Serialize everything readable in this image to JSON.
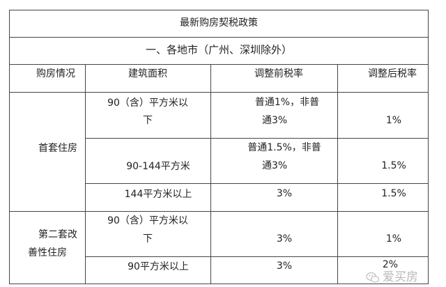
{
  "title": "最新购房契税政策",
  "section": "一、各地市（广州、深圳除外）",
  "headers": [
    "购房情况",
    "建筑面积",
    "调整前税率",
    "调整后税率"
  ],
  "groups": [
    {
      "label_lines": [
        "首套住房"
      ],
      "rows": [
        {
          "area_lines": [
            "90（含）平方米以",
            "下"
          ],
          "before_lines": [
            "普通1%，非普",
            "通3%"
          ],
          "after": "1%"
        },
        {
          "area_lines": [
            "90-144平方米"
          ],
          "before_lines": [
            "普通1.5%，非普",
            "通3%"
          ],
          "after": "1.5%"
        },
        {
          "area_lines": [
            "144平方米以上"
          ],
          "before_lines": [
            "3%"
          ],
          "after": "1.5%"
        }
      ]
    },
    {
      "label_lines": [
        "第二套改",
        "善性住房"
      ],
      "rows": [
        {
          "area_lines": [
            "90（含）平方米以",
            "下"
          ],
          "before_lines": [
            "3%"
          ],
          "after": "1%"
        },
        {
          "area_lines": [
            "90平方米以上"
          ],
          "before_lines": [
            "3%"
          ],
          "after": "2%"
        }
      ]
    }
  ],
  "watermark": {
    "icon": "wechat-icon",
    "text": "爱买房"
  }
}
